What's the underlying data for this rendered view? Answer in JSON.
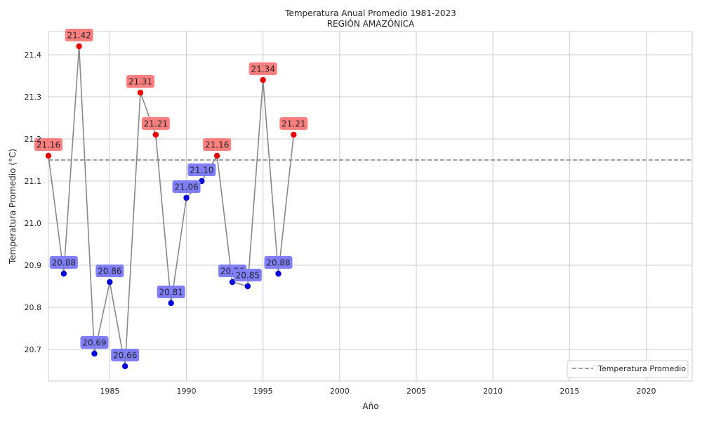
{
  "chart_data": {
    "type": "line",
    "title": "Temperatura Anual Promedio 1981-2023",
    "subtitle": "REGIÓN AMAZÓNICA",
    "xlabel": "Año",
    "ylabel": "Temperatura Promedio (°C)",
    "xlim": [
      1981,
      2023
    ],
    "ylim": [
      20.625,
      21.455
    ],
    "x_ticks": [
      1985,
      1990,
      1995,
      2000,
      2005,
      2010,
      2015,
      2020
    ],
    "y_ticks": [
      20.7,
      20.8,
      20.9,
      21.0,
      21.1,
      21.2,
      21.3,
      21.4
    ],
    "grid": true,
    "series": [
      {
        "x": [
          1981,
          1982,
          1983,
          1984,
          1985,
          1986,
          1987,
          1988,
          1989,
          1990,
          1991,
          1992,
          1993,
          1994,
          1995,
          1996,
          1997
        ],
        "values": [
          21.16,
          20.88,
          21.42,
          20.69,
          20.86,
          20.66,
          21.31,
          21.21,
          20.81,
          21.06,
          21.1,
          21.16,
          20.86,
          20.85,
          21.34,
          20.88,
          21.21
        ],
        "labels": [
          "21.16",
          "20.88",
          "21.42",
          "20.69",
          "20.86",
          "20.66",
          "21.31",
          "21.21",
          "20.81",
          "21.06",
          "21.10",
          "21.16",
          "20.86",
          "20.85",
          "21.34",
          "20.88",
          "21.21"
        ]
      }
    ],
    "reference_line": {
      "name": "Temperatura Promedio",
      "value": 21.15
    },
    "legend": {
      "placement": "lower-right",
      "entries": [
        "Temperatura Promedio"
      ]
    },
    "colors": {
      "line": "#888888",
      "above": "#e60000",
      "below": "#0000dd",
      "above_label_bg": "#ff7f7f",
      "below_label_bg": "#7f7fff",
      "reference": "#808080",
      "grid": "#cccccc"
    }
  }
}
